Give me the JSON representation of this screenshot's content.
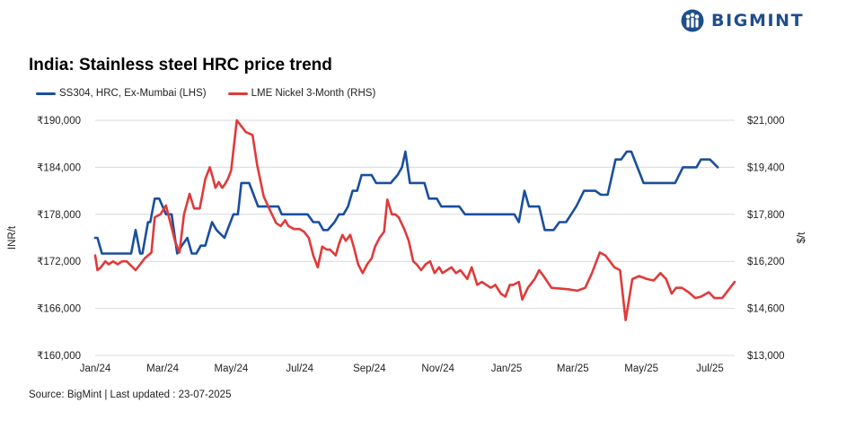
{
  "brand": {
    "name": "BIGMINT",
    "logo_icon": "bigmint-figures-icon",
    "color": "#1f4e8c"
  },
  "footer": {
    "source": "Source: BigMint | Last updated : 23-07-2025"
  },
  "chart_data": {
    "type": "line",
    "title": "India: Stainless steel HRC price trend",
    "ylabel_left": "INR/t",
    "ylabel_right": "$/t",
    "ylim_left": [
      160000,
      190000
    ],
    "ylim_right": [
      13000,
      21000
    ],
    "yticks_left": [
      "₹190,000",
      "₹184,000",
      "₹178,000",
      "₹172,000",
      "₹166,000",
      "₹160,000"
    ],
    "yticks_right": [
      "$21,000",
      "$19,400",
      "$17,800",
      "$16,200",
      "$14,600",
      "$13,000"
    ],
    "yticks_left_values": [
      190000,
      184000,
      178000,
      172000,
      166000,
      160000
    ],
    "yticks_right_values": [
      21000,
      19400,
      17800,
      16200,
      14600,
      13000
    ],
    "x_tick_labels": [
      "Jan/24",
      "Mar/24",
      "May/24",
      "Jul/24",
      "Sep/24",
      "Nov/24",
      "Jan/25",
      "Mar/25",
      "May/25",
      "Jul/25"
    ],
    "x_tick_dates": [
      "2024-01-01",
      "2024-03-01",
      "2024-05-01",
      "2024-07-01",
      "2024-09-01",
      "2024-11-01",
      "2025-01-01",
      "2025-03-01",
      "2025-05-01",
      "2025-07-01"
    ],
    "xlim": [
      "2024-01-01",
      "2025-07-23"
    ],
    "grid": "horizontal",
    "legend_position": "top-left",
    "series": [
      {
        "name": "SS304, HRC, Ex-Mumbai (LHS)",
        "axis": "left",
        "color": "#1a4f9c",
        "points": [
          [
            "2024-01-01",
            175000
          ],
          [
            "2024-01-03",
            175000
          ],
          [
            "2024-01-07",
            173000
          ],
          [
            "2024-01-21",
            173000
          ],
          [
            "2024-01-31",
            173000
          ],
          [
            "2024-02-02",
            173000
          ],
          [
            "2024-02-06",
            176000
          ],
          [
            "2024-02-10",
            173000
          ],
          [
            "2024-02-12",
            173000
          ],
          [
            "2024-02-17",
            177000
          ],
          [
            "2024-02-19",
            177000
          ],
          [
            "2024-02-23",
            180000
          ],
          [
            "2024-02-27",
            180000
          ],
          [
            "2024-03-04",
            178000
          ],
          [
            "2024-03-09",
            178000
          ],
          [
            "2024-03-14",
            173000
          ],
          [
            "2024-03-18",
            174000
          ],
          [
            "2024-03-23",
            175000
          ],
          [
            "2024-03-27",
            173000
          ],
          [
            "2024-03-31",
            173000
          ],
          [
            "2024-04-04",
            174000
          ],
          [
            "2024-04-08",
            174000
          ],
          [
            "2024-04-14",
            177000
          ],
          [
            "2024-04-18",
            176000
          ],
          [
            "2024-04-25",
            175000
          ],
          [
            "2024-05-03",
            178000
          ],
          [
            "2024-05-07",
            178000
          ],
          [
            "2024-05-10",
            182000
          ],
          [
            "2024-05-17",
            182000
          ],
          [
            "2024-05-25",
            179000
          ],
          [
            "2024-06-01",
            179000
          ],
          [
            "2024-06-12",
            179000
          ],
          [
            "2024-06-15",
            178000
          ],
          [
            "2024-06-30",
            178000
          ],
          [
            "2024-07-08",
            178000
          ],
          [
            "2024-07-13",
            177000
          ],
          [
            "2024-07-18",
            177000
          ],
          [
            "2024-07-22",
            176000
          ],
          [
            "2024-07-26",
            176000
          ],
          [
            "2024-08-01",
            177000
          ],
          [
            "2024-08-05",
            178000
          ],
          [
            "2024-08-09",
            178000
          ],
          [
            "2024-08-13",
            179000
          ],
          [
            "2024-08-17",
            181000
          ],
          [
            "2024-08-21",
            181000
          ],
          [
            "2024-08-25",
            183000
          ],
          [
            "2024-09-03",
            183000
          ],
          [
            "2024-09-07",
            182000
          ],
          [
            "2024-09-20",
            182000
          ],
          [
            "2024-09-26",
            183000
          ],
          [
            "2024-09-30",
            184000
          ],
          [
            "2024-10-03",
            186000
          ],
          [
            "2024-10-07",
            182000
          ],
          [
            "2024-10-15",
            182000
          ],
          [
            "2024-10-20",
            182000
          ],
          [
            "2024-10-24",
            180000
          ],
          [
            "2024-10-31",
            180000
          ],
          [
            "2024-11-04",
            179000
          ],
          [
            "2024-11-20",
            179000
          ],
          [
            "2024-11-25",
            178000
          ],
          [
            "2024-12-15",
            178000
          ],
          [
            "2025-01-08",
            178000
          ],
          [
            "2025-01-12",
            177000
          ],
          [
            "2025-01-17",
            181000
          ],
          [
            "2025-01-21",
            179000
          ],
          [
            "2025-01-30",
            179000
          ],
          [
            "2025-02-04",
            176000
          ],
          [
            "2025-02-12",
            176000
          ],
          [
            "2025-02-17",
            177000
          ],
          [
            "2025-02-23",
            177000
          ],
          [
            "2025-03-04",
            179000
          ],
          [
            "2025-03-11",
            181000
          ],
          [
            "2025-03-21",
            181000
          ],
          [
            "2025-03-26",
            180500
          ],
          [
            "2025-04-01",
            180500
          ],
          [
            "2025-04-08",
            185000
          ],
          [
            "2025-04-13",
            185000
          ],
          [
            "2025-04-18",
            186000
          ],
          [
            "2025-04-22",
            186000
          ],
          [
            "2025-05-03",
            182000
          ],
          [
            "2025-05-10",
            182000
          ],
          [
            "2025-05-31",
            182000
          ],
          [
            "2025-06-07",
            184000
          ],
          [
            "2025-06-19",
            184000
          ],
          [
            "2025-06-23",
            185000
          ],
          [
            "2025-07-01",
            185000
          ],
          [
            "2025-07-08",
            184000
          ]
        ]
      },
      {
        "name": "LME Nickel 3-Month (RHS)",
        "axis": "right",
        "color": "#e03a3a",
        "points": [
          [
            "2024-01-01",
            16400
          ],
          [
            "2024-01-03",
            15900
          ],
          [
            "2024-01-06",
            16000
          ],
          [
            "2024-01-10",
            16200
          ],
          [
            "2024-01-13",
            16100
          ],
          [
            "2024-01-17",
            16200
          ],
          [
            "2024-01-21",
            16100
          ],
          [
            "2024-01-25",
            16200
          ],
          [
            "2024-01-29",
            16200
          ],
          [
            "2024-02-06",
            15900
          ],
          [
            "2024-02-10",
            16100
          ],
          [
            "2024-02-14",
            16300
          ],
          [
            "2024-02-20",
            16500
          ],
          [
            "2024-02-23",
            17700
          ],
          [
            "2024-02-28",
            17800
          ],
          [
            "2024-03-04",
            18100
          ],
          [
            "2024-03-08",
            17500
          ],
          [
            "2024-03-12",
            16900
          ],
          [
            "2024-03-16",
            16500
          ],
          [
            "2024-03-20",
            17800
          ],
          [
            "2024-03-25",
            18500
          ],
          [
            "2024-03-29",
            18000
          ],
          [
            "2024-04-03",
            18000
          ],
          [
            "2024-04-08",
            19000
          ],
          [
            "2024-04-12",
            19400
          ],
          [
            "2024-04-15",
            19000
          ],
          [
            "2024-04-17",
            18700
          ],
          [
            "2024-04-20",
            18900
          ],
          [
            "2024-04-23",
            18700
          ],
          [
            "2024-04-25",
            18800
          ],
          [
            "2024-04-28",
            19000
          ],
          [
            "2024-05-01",
            19300
          ],
          [
            "2024-05-06",
            21000
          ],
          [
            "2024-05-10",
            20800
          ],
          [
            "2024-05-14",
            20600
          ],
          [
            "2024-05-20",
            20500
          ],
          [
            "2024-05-24",
            19500
          ],
          [
            "2024-05-30",
            18400
          ],
          [
            "2024-06-05",
            17900
          ],
          [
            "2024-06-10",
            17500
          ],
          [
            "2024-06-14",
            17400
          ],
          [
            "2024-06-18",
            17600
          ],
          [
            "2024-06-21",
            17400
          ],
          [
            "2024-06-26",
            17300
          ],
          [
            "2024-07-01",
            17300
          ],
          [
            "2024-07-05",
            17200
          ],
          [
            "2024-07-09",
            17000
          ],
          [
            "2024-07-13",
            16400
          ],
          [
            "2024-07-17",
            16000
          ],
          [
            "2024-07-21",
            16700
          ],
          [
            "2024-07-25",
            16600
          ],
          [
            "2024-07-28",
            16600
          ],
          [
            "2024-08-02",
            16400
          ],
          [
            "2024-08-05",
            16800
          ],
          [
            "2024-08-08",
            17100
          ],
          [
            "2024-08-11",
            16900
          ],
          [
            "2024-08-15",
            17100
          ],
          [
            "2024-08-18",
            16700
          ],
          [
            "2024-08-22",
            16100
          ],
          [
            "2024-08-26",
            15800
          ],
          [
            "2024-08-30",
            16100
          ],
          [
            "2024-09-03",
            16300
          ],
          [
            "2024-09-06",
            16700
          ],
          [
            "2024-09-10",
            17000
          ],
          [
            "2024-09-14",
            17200
          ],
          [
            "2024-09-17",
            18300
          ],
          [
            "2024-09-21",
            17800
          ],
          [
            "2024-09-24",
            17800
          ],
          [
            "2024-09-27",
            17700
          ],
          [
            "2024-10-02",
            17300
          ],
          [
            "2024-10-06",
            16900
          ],
          [
            "2024-10-10",
            16200
          ],
          [
            "2024-10-13",
            16100
          ],
          [
            "2024-10-17",
            15900
          ],
          [
            "2024-10-21",
            16100
          ],
          [
            "2024-10-25",
            16200
          ],
          [
            "2024-10-29",
            15800
          ],
          [
            "2024-11-02",
            16000
          ],
          [
            "2024-11-05",
            15800
          ],
          [
            "2024-11-09",
            15900
          ],
          [
            "2024-11-13",
            16000
          ],
          [
            "2024-11-17",
            15800
          ],
          [
            "2024-11-21",
            15900
          ],
          [
            "2024-11-27",
            15600
          ],
          [
            "2024-12-01",
            16000
          ],
          [
            "2024-12-06",
            15400
          ],
          [
            "2024-12-10",
            15500
          ],
          [
            "2024-12-14",
            15400
          ],
          [
            "2024-12-18",
            15300
          ],
          [
            "2024-12-22",
            15400
          ],
          [
            "2024-12-27",
            15100
          ],
          [
            "2024-12-31",
            15000
          ],
          [
            "2025-01-04",
            15400
          ],
          [
            "2025-01-07",
            15400
          ],
          [
            "2025-01-12",
            15500
          ],
          [
            "2025-01-15",
            14900
          ],
          [
            "2025-01-20",
            15300
          ],
          [
            "2025-01-26",
            15600
          ],
          [
            "2025-01-30",
            15900
          ],
          [
            "2025-02-03",
            15700
          ],
          [
            "2025-02-10",
            15300
          ],
          [
            "2025-02-25",
            15250
          ],
          [
            "2025-03-05",
            15200
          ],
          [
            "2025-03-12",
            15300
          ],
          [
            "2025-03-18",
            15800
          ],
          [
            "2025-03-25",
            16500
          ],
          [
            "2025-03-30",
            16400
          ],
          [
            "2025-04-07",
            16000
          ],
          [
            "2025-04-12",
            15900
          ],
          [
            "2025-04-17",
            14200
          ],
          [
            "2025-04-23",
            15600
          ],
          [
            "2025-04-29",
            15700
          ],
          [
            "2025-05-06",
            15600
          ],
          [
            "2025-05-12",
            15550
          ],
          [
            "2025-05-18",
            15800
          ],
          [
            "2025-05-23",
            15600
          ],
          [
            "2025-05-28",
            15100
          ],
          [
            "2025-06-01",
            15300
          ],
          [
            "2025-06-06",
            15300
          ],
          [
            "2025-06-12",
            15150
          ],
          [
            "2025-06-18",
            14950
          ],
          [
            "2025-06-23",
            15000
          ],
          [
            "2025-06-30",
            15150
          ],
          [
            "2025-07-05",
            14950
          ],
          [
            "2025-07-12",
            14950
          ],
          [
            "2025-07-23",
            15500
          ]
        ]
      }
    ]
  }
}
